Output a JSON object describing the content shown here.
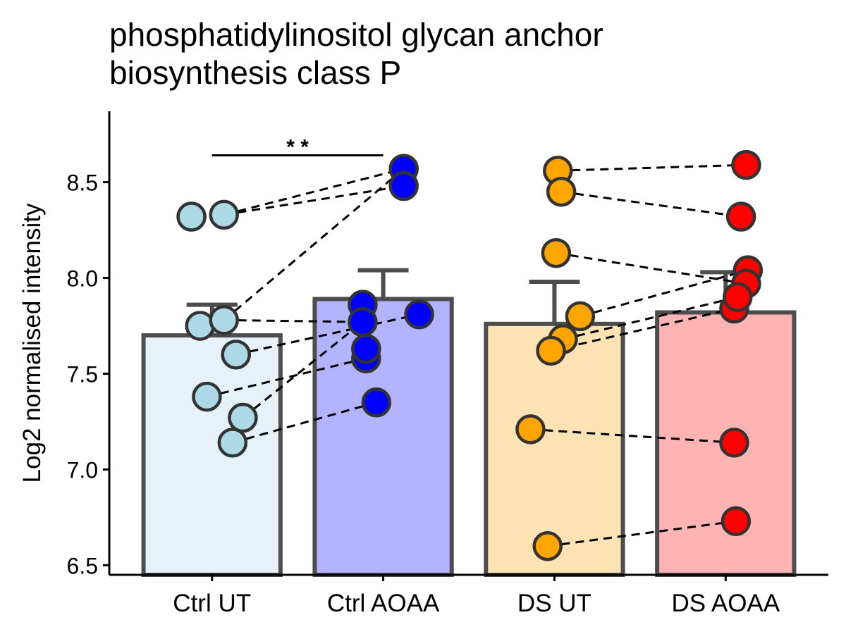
{
  "chart_data": {
    "type": "bar",
    "title_lines": [
      "phosphatidylinositol glycan anchor",
      "biosynthesis class P"
    ],
    "xlabel": "",
    "ylabel": "Log2 normalised intensity",
    "ylim": [
      6.45,
      8.87
    ],
    "yticks": [
      6.5,
      7.0,
      7.5,
      8.0,
      8.5
    ],
    "ytick_labels": [
      "6.5",
      "7.0",
      "7.5",
      "8.0",
      "8.5"
    ],
    "grid": false,
    "legend": "none",
    "categories": [
      "Ctrl UT",
      "Ctrl AOAA",
      "DS UT",
      "DS AOAA"
    ],
    "bars": [
      {
        "category": "Ctrl UT",
        "mean": 7.7,
        "err_upper": 7.86,
        "fill": "#e6f1f8",
        "point_color": "#add8e6"
      },
      {
        "category": "Ctrl AOAA",
        "mean": 7.89,
        "err_upper": 8.04,
        "fill": "#b3b3ff",
        "point_color": "#0000ff"
      },
      {
        "category": "DS UT",
        "mean": 7.76,
        "err_upper": 7.98,
        "fill": "#fde3b3",
        "point_color": "#ffa500"
      },
      {
        "category": "DS AOAA",
        "mean": 7.82,
        "err_upper": 8.03,
        "fill": "#ffb3b3",
        "point_color": "#ff0000"
      }
    ],
    "points": {
      "Ctrl UT": [
        {
          "j": -0.12,
          "y": 8.32
        },
        {
          "j": 0.07,
          "y": 8.33
        },
        {
          "j": -0.07,
          "y": 7.75
        },
        {
          "j": 0.07,
          "y": 7.78
        },
        {
          "j": 0.14,
          "y": 7.6
        },
        {
          "j": -0.03,
          "y": 7.38
        },
        {
          "j": 0.18,
          "y": 7.27
        },
        {
          "j": 0.12,
          "y": 7.14
        }
      ],
      "Ctrl AOAA": [
        {
          "j": 0.12,
          "y": 8.57
        },
        {
          "j": 0.12,
          "y": 8.48
        },
        {
          "j": -0.12,
          "y": 7.86
        },
        {
          "j": 0.21,
          "y": 7.81
        },
        {
          "j": -0.12,
          "y": 7.77
        },
        {
          "j": -0.1,
          "y": 7.58
        },
        {
          "j": -0.1,
          "y": 7.63
        },
        {
          "j": -0.04,
          "y": 7.35
        }
      ],
      "DS UT": [
        {
          "j": 0.02,
          "y": 8.56
        },
        {
          "j": 0.04,
          "y": 8.45
        },
        {
          "j": 0.01,
          "y": 8.13
        },
        {
          "j": 0.15,
          "y": 7.8
        },
        {
          "j": 0.05,
          "y": 7.68
        },
        {
          "j": -0.02,
          "y": 7.62
        },
        {
          "j": -0.14,
          "y": 7.21
        },
        {
          "j": -0.04,
          "y": 6.6
        }
      ],
      "DS AOAA": [
        {
          "j": 0.12,
          "y": 8.59
        },
        {
          "j": 0.09,
          "y": 8.32
        },
        {
          "j": 0.13,
          "y": 8.04
        },
        {
          "j": 0.12,
          "y": 7.97
        },
        {
          "j": 0.05,
          "y": 7.84
        },
        {
          "j": 0.07,
          "y": 7.9
        },
        {
          "j": 0.05,
          "y": 7.14
        },
        {
          "j": 0.06,
          "y": 6.73
        }
      ]
    },
    "pairs": [
      {
        "from": [
          "Ctrl UT",
          1
        ],
        "to": [
          "Ctrl AOAA",
          0
        ]
      },
      {
        "from": [
          "Ctrl UT",
          1
        ],
        "to": [
          "Ctrl AOAA",
          1
        ]
      },
      {
        "from": [
          "Ctrl UT",
          3
        ],
        "to": [
          "Ctrl AOAA",
          0
        ]
      },
      {
        "from": [
          "Ctrl UT",
          3
        ],
        "to": [
          "Ctrl AOAA",
          4
        ]
      },
      {
        "from": [
          "Ctrl UT",
          4
        ],
        "to": [
          "Ctrl AOAA",
          3
        ]
      },
      {
        "from": [
          "Ctrl UT",
          5
        ],
        "to": [
          "Ctrl AOAA",
          5
        ]
      },
      {
        "from": [
          "Ctrl UT",
          6
        ],
        "to": [
          "Ctrl AOAA",
          4
        ]
      },
      {
        "from": [
          "Ctrl UT",
          7
        ],
        "to": [
          "Ctrl AOAA",
          7
        ]
      },
      {
        "from": [
          "DS UT",
          0
        ],
        "to": [
          "DS AOAA",
          0
        ]
      },
      {
        "from": [
          "DS UT",
          1
        ],
        "to": [
          "DS AOAA",
          1
        ]
      },
      {
        "from": [
          "DS UT",
          2
        ],
        "to": [
          "DS AOAA",
          3
        ]
      },
      {
        "from": [
          "DS UT",
          3
        ],
        "to": [
          "DS AOAA",
          2
        ]
      },
      {
        "from": [
          "DS UT",
          4
        ],
        "to": [
          "DS AOAA",
          5
        ]
      },
      {
        "from": [
          "DS UT",
          5
        ],
        "to": [
          "DS AOAA",
          4
        ]
      },
      {
        "from": [
          "DS UT",
          6
        ],
        "to": [
          "DS AOAA",
          6
        ]
      },
      {
        "from": [
          "DS UT",
          7
        ],
        "to": [
          "DS AOAA",
          7
        ]
      }
    ],
    "significance": {
      "from": "Ctrl UT",
      "to": "Ctrl AOAA",
      "y": 8.64,
      "label": "* *"
    }
  }
}
